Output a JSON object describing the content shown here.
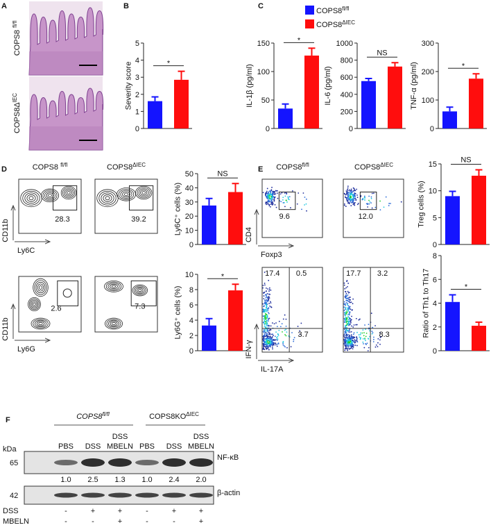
{
  "panel_labels": [
    "A",
    "B",
    "C",
    "D",
    "E",
    "F"
  ],
  "legend": [
    {
      "text": "COPS8",
      "sup": "fl/fl",
      "color": "#1414ff"
    },
    {
      "text": "COPS8",
      "sup": "ΔIEC",
      "color": "#ff0d0d"
    }
  ],
  "panel_a": {
    "rows": [
      {
        "text": "COPS8 ",
        "sup": "fl/fl"
      },
      {
        "text": "COPS8Δ",
        "sup": "IEC"
      }
    ]
  },
  "flow_d": {
    "columns": [
      {
        "text": "COPS8 ",
        "sup": "fl/fl"
      },
      {
        "text": "COPS8",
        "sup": "ΔIEC"
      }
    ],
    "rows": [
      {
        "y_axis": "CD11b",
        "x_axis": "Ly6C",
        "gates": [
          "28.3",
          "39.2"
        ]
      },
      {
        "y_axis": "CD11b",
        "x_axis": "Ly6G",
        "gates": [
          "2.6",
          "7.3"
        ]
      }
    ]
  },
  "flow_e": {
    "columns": [
      {
        "text": "COPS8",
        "sup": "fl/fl"
      },
      {
        "text": "COPS8",
        "sup": "ΔIEC"
      }
    ],
    "treg": {
      "y_axis": "CD4",
      "x_axis": "Foxp3",
      "gates": [
        "9.6",
        "12.0"
      ]
    },
    "th": {
      "y_axis": "IFN-γ",
      "x_axis": "IL-17A",
      "quadrants": [
        [
          "17.4",
          "0.5",
          "3.7"
        ],
        [
          "17.7",
          "3.2",
          "8.3"
        ]
      ]
    }
  },
  "blot": {
    "groups": [
      {
        "text": "COPS8",
        "sup": "fl/fl"
      },
      {
        "text": "COPS8KO",
        "sup": "ΔIEC"
      }
    ],
    "lanes": [
      [
        "PBS"
      ],
      [
        "DSS"
      ],
      [
        "DSS",
        "MBELN"
      ],
      [
        "PBS"
      ],
      [
        "DSS"
      ],
      [
        "DSS",
        "MBELN"
      ]
    ],
    "kda_label": "kDa",
    "markers": [
      "65",
      "42"
    ],
    "proteins": [
      "NF-κB",
      "β-actin"
    ],
    "ratios": [
      "1.0",
      "2.5",
      "1.3",
      "1.0",
      "2.4",
      "2.0"
    ],
    "treatments": [
      {
        "name": "DSS",
        "signs": [
          "-",
          "+",
          "+",
          "-",
          "+",
          "+"
        ]
      },
      {
        "name": "MBELN",
        "signs": [
          "-",
          "-",
          "+",
          "-",
          "-",
          "+"
        ]
      }
    ]
  },
  "chart_data": [
    {
      "type": "bar",
      "ylabel": "Severity score",
      "values": [
        1.6,
        2.85
      ],
      "errors": [
        0.25,
        0.5
      ],
      "significance": "*",
      "ylim": [
        0,
        5
      ],
      "yticks": [
        0,
        1,
        2,
        3,
        4,
        5
      ]
    },
    {
      "type": "bar",
      "ylabel": "IL-1β (pg/ml)",
      "values": [
        35,
        128
      ],
      "errors": [
        8,
        13
      ],
      "significance": "*",
      "ylim": [
        0,
        150
      ],
      "yticks": [
        0,
        50,
        100,
        150
      ]
    },
    {
      "type": "bar",
      "ylabel": "IL-6 (pg/ml)",
      "values": [
        555,
        725
      ],
      "errors": [
        30,
        45
      ],
      "significance": "NS",
      "ylim": [
        0,
        1000
      ],
      "yticks": [
        0,
        200,
        400,
        600,
        800,
        1000
      ]
    },
    {
      "type": "bar",
      "ylabel": "TNF-α (pg/ml)",
      "values": [
        60,
        175
      ],
      "errors": [
        15,
        17
      ],
      "significance": "*",
      "ylim": [
        0,
        300
      ],
      "yticks": [
        0,
        100,
        200,
        300
      ]
    },
    {
      "type": "bar",
      "ylabel": "Ly6C⁺ cells (%)",
      "values": [
        27.5,
        37
      ],
      "errors": [
        5,
        6
      ],
      "significance": "NS",
      "ylim": [
        0,
        50
      ],
      "yticks": [
        0,
        10,
        20,
        30,
        40,
        50
      ]
    },
    {
      "type": "bar",
      "ylabel": "Ly6G⁺ cells (%)",
      "values": [
        3.3,
        7.9
      ],
      "errors": [
        0.9,
        0.8
      ],
      "significance": "*",
      "ylim": [
        0,
        10
      ],
      "yticks": [
        0,
        2,
        4,
        6,
        8,
        10
      ]
    },
    {
      "type": "bar",
      "ylabel": "Treg cells (%)",
      "values": [
        9,
        12.8
      ],
      "errors": [
        0.9,
        1.1
      ],
      "significance": "NS",
      "ylim": [
        0,
        15
      ],
      "yticks": [
        0,
        5,
        10,
        15
      ]
    },
    {
      "type": "bar",
      "ylabel": "Ratio of Th1 to Th17",
      "values": [
        4.1,
        2.1
      ],
      "errors": [
        0.6,
        0.3
      ],
      "significance": "*",
      "ylim": [
        0,
        8
      ],
      "yticks": [
        0,
        2,
        4,
        6,
        8
      ]
    }
  ]
}
